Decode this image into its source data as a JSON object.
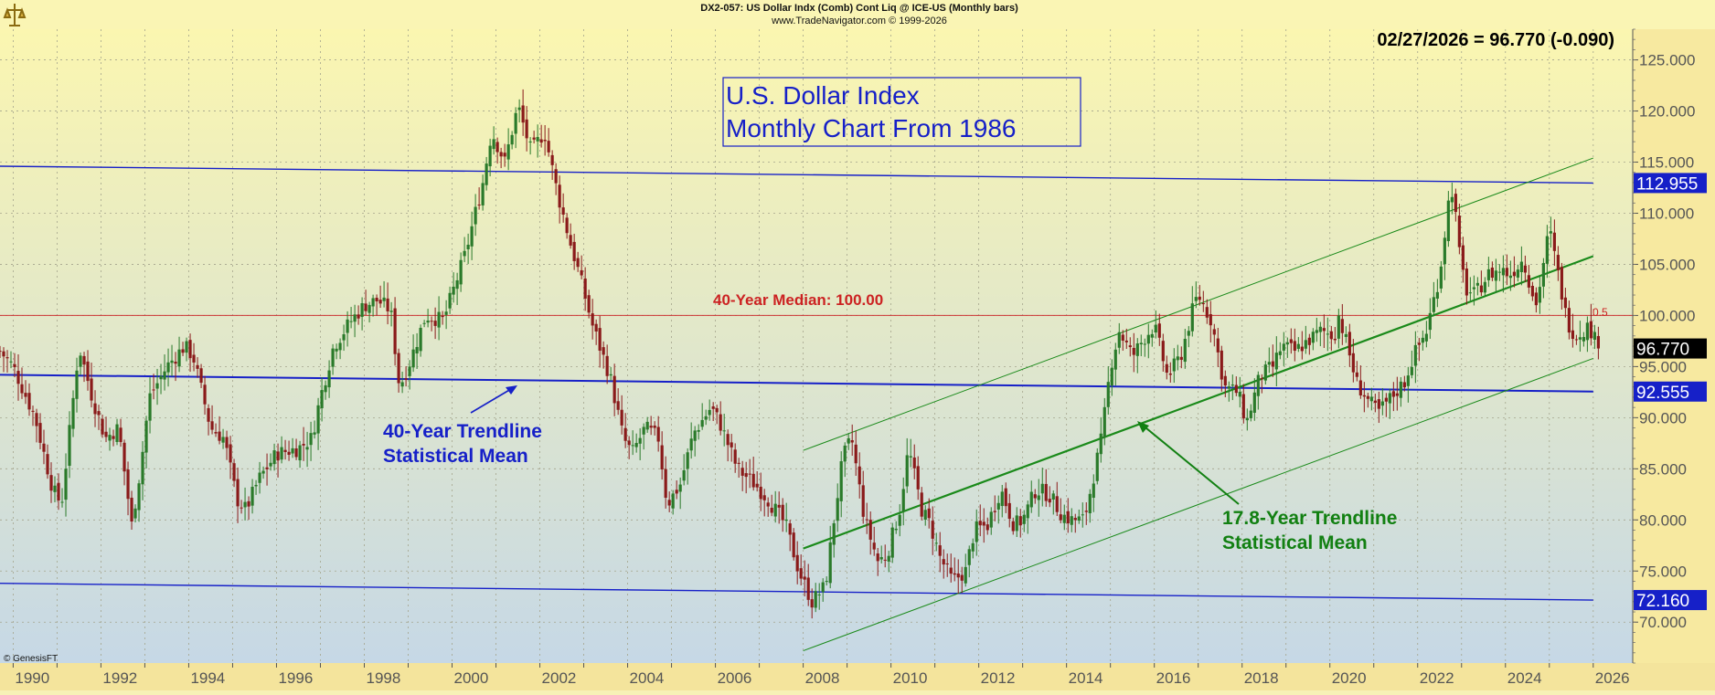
{
  "header": {
    "symbol_line": "DX2-057:  US Dollar Indx (Comb) Cont Liq @ ICE-US  (Monthly bars)",
    "source_line": "www.TradeNavigator.com © 1999-2026"
  },
  "quote": {
    "text": "02/27/2026 = 96.770 (-0.090)"
  },
  "copyright": "© GenesisFT",
  "colors": {
    "bg_top": "#fbf6b0",
    "bg_bottom": "#c6d8e6",
    "axis_bg": "#f7e9a0",
    "grid": "#a4a48c",
    "up_bar": "#2a7a2a",
    "down_bar": "#8a1a1a",
    "blue_line": "#1620c8",
    "green_line": "#1a8a1a",
    "median_line": "#cc3333"
  },
  "chart_data": {
    "type": "candlestick",
    "title": "U.S. Dollar Index Monthly Chart From 1986",
    "title_lines": [
      "U.S. Dollar Index",
      "Monthly Chart From 1986"
    ],
    "x_range": [
      1989.7,
      2026.9
    ],
    "ylim": [
      66.0,
      128.0
    ],
    "x_ticks": [
      "1990",
      "1992",
      "1994",
      "1996",
      "1998",
      "2000",
      "2002",
      "2004",
      "2006",
      "2008",
      "2010",
      "2012",
      "2014",
      "2016",
      "2018",
      "2020",
      "2022",
      "2024",
      "2026"
    ],
    "y_ticks": [
      "70.000",
      "75.000",
      "80.000",
      "85.000",
      "90.000",
      "95.000",
      "100.000",
      "105.000",
      "110.000",
      "115.000",
      "120.000",
      "125.000"
    ],
    "grid": true,
    "last_value": 96.77,
    "level_labels": [
      {
        "text": "112.955",
        "value": 112.955
      },
      {
        "text": "92.555",
        "value": 92.555
      },
      {
        "text": "72.160",
        "value": 72.16
      }
    ],
    "median_label": "0.5",
    "price_path": [
      [
        1989.7,
        96.5
      ],
      [
        1990.0,
        95.0
      ],
      [
        1990.5,
        90.0
      ],
      [
        1990.9,
        83.0
      ],
      [
        1991.1,
        81.5
      ],
      [
        1991.5,
        97.0
      ],
      [
        1991.8,
        92.0
      ],
      [
        1992.1,
        88.0
      ],
      [
        1992.4,
        89.0
      ],
      [
        1992.7,
        79.5
      ],
      [
        1992.9,
        85.0
      ],
      [
        1993.1,
        92.0
      ],
      [
        1993.5,
        95.0
      ],
      [
        1993.9,
        97.0
      ],
      [
        1994.1,
        96.0
      ],
      [
        1994.5,
        89.0
      ],
      [
        1994.8,
        88.0
      ],
      [
        1995.1,
        82.0
      ],
      [
        1995.3,
        81.0
      ],
      [
        1995.6,
        84.0
      ],
      [
        1996.0,
        86.5
      ],
      [
        1996.5,
        87.0
      ],
      [
        1996.8,
        88.0
      ],
      [
        1997.0,
        92.0
      ],
      [
        1997.3,
        97.0
      ],
      [
        1997.7,
        99.5
      ],
      [
        1998.0,
        101.0
      ],
      [
        1998.3,
        101.5
      ],
      [
        1998.6,
        100.5
      ],
      [
        1998.8,
        93.0
      ],
      [
        1999.0,
        95.0
      ],
      [
        1999.4,
        100.0
      ],
      [
        1999.8,
        99.5
      ],
      [
        2000.3,
        106.0
      ],
      [
        2000.7,
        113.0
      ],
      [
        2000.9,
        118.0
      ],
      [
        2001.2,
        115.0
      ],
      [
        2001.5,
        120.5
      ],
      [
        2001.8,
        116.0
      ],
      [
        2002.1,
        118.0
      ],
      [
        2002.4,
        112.0
      ],
      [
        2002.7,
        107.0
      ],
      [
        2002.9,
        104.0
      ],
      [
        2003.2,
        99.0
      ],
      [
        2003.6,
        94.0
      ],
      [
        2003.9,
        88.0
      ],
      [
        2004.1,
        86.5
      ],
      [
        2004.4,
        89.0
      ],
      [
        2004.7,
        88.0
      ],
      [
        2004.9,
        81.5
      ],
      [
        2005.2,
        83.5
      ],
      [
        2005.5,
        88.5
      ],
      [
        2005.9,
        91.0
      ],
      [
        2006.1,
        89.5
      ],
      [
        2006.5,
        85.0
      ],
      [
        2006.9,
        83.5
      ],
      [
        2007.2,
        82.0
      ],
      [
        2007.6,
        79.5
      ],
      [
        2007.9,
        75.0
      ],
      [
        2008.2,
        72.0
      ],
      [
        2008.5,
        73.5
      ],
      [
        2008.7,
        80.0
      ],
      [
        2008.9,
        86.0
      ],
      [
        2009.1,
        88.0
      ],
      [
        2009.4,
        80.0
      ],
      [
        2009.7,
        76.0
      ],
      [
        2009.9,
        76.5
      ],
      [
        2010.2,
        81.0
      ],
      [
        2010.4,
        87.0
      ],
      [
        2010.7,
        81.0
      ],
      [
        2010.9,
        79.5
      ],
      [
        2011.1,
        76.5
      ],
      [
        2011.4,
        74.0
      ],
      [
        2011.7,
        75.0
      ],
      [
        2011.9,
        79.0
      ],
      [
        2012.2,
        79.5
      ],
      [
        2012.5,
        83.0
      ],
      [
        2012.8,
        79.5
      ],
      [
        2013.0,
        80.0
      ],
      [
        2013.3,
        83.0
      ],
      [
        2013.6,
        82.5
      ],
      [
        2013.9,
        80.5
      ],
      [
        2014.1,
        80.0
      ],
      [
        2014.4,
        80.0
      ],
      [
        2014.6,
        84.0
      ],
      [
        2014.8,
        88.0
      ],
      [
        2015.0,
        95.0
      ],
      [
        2015.2,
        98.5
      ],
      [
        2015.5,
        96.0
      ],
      [
        2015.8,
        98.0
      ],
      [
        2016.0,
        99.0
      ],
      [
        2016.3,
        94.0
      ],
      [
        2016.6,
        96.0
      ],
      [
        2016.9,
        101.0
      ],
      [
        2017.0,
        102.0
      ],
      [
        2017.3,
        99.5
      ],
      [
        2017.6,
        93.0
      ],
      [
        2017.9,
        92.5
      ],
      [
        2018.1,
        89.5
      ],
      [
        2018.4,
        94.0
      ],
      [
        2018.7,
        95.0
      ],
      [
        2018.9,
        97.0
      ],
      [
        2019.2,
        96.5
      ],
      [
        2019.5,
        97.5
      ],
      [
        2019.8,
        98.5
      ],
      [
        2020.1,
        98.0
      ],
      [
        2020.2,
        100.0
      ],
      [
        2020.4,
        97.0
      ],
      [
        2020.6,
        93.5
      ],
      [
        2020.9,
        91.5
      ],
      [
        2021.1,
        90.5
      ],
      [
        2021.4,
        92.0
      ],
      [
        2021.7,
        93.5
      ],
      [
        2021.9,
        96.0
      ],
      [
        2022.2,
        98.5
      ],
      [
        2022.5,
        104.0
      ],
      [
        2022.7,
        111.0
      ],
      [
        2022.8,
        112.5
      ],
      [
        2022.95,
        106.0
      ],
      [
        2023.1,
        102.5
      ],
      [
        2023.3,
        102.0
      ],
      [
        2023.6,
        104.0
      ],
      [
        2023.9,
        104.5
      ],
      [
        2024.1,
        104.0
      ],
      [
        2024.4,
        105.5
      ],
      [
        2024.7,
        101.0
      ],
      [
        2024.9,
        106.0
      ],
      [
        2025.0,
        108.5
      ],
      [
        2025.2,
        104.0
      ],
      [
        2025.4,
        99.5
      ],
      [
        2025.6,
        98.0
      ],
      [
        2025.9,
        99.0
      ],
      [
        2026.1,
        97.0
      ],
      [
        2026.15,
        96.77
      ]
    ],
    "trendlines": [
      {
        "label_lines": [
          "40-Year Trendline",
          "Statistical Mean"
        ],
        "kind": "mean",
        "points": [
          [
            1989.7,
            94.2
          ],
          [
            2026.0,
            92.555
          ]
        ]
      },
      {
        "kind": "upper",
        "points": [
          [
            1989.7,
            114.6
          ],
          [
            2026.0,
            112.955
          ]
        ]
      },
      {
        "kind": "lower",
        "points": [
          [
            1989.7,
            73.8
          ],
          [
            2026.0,
            72.16
          ]
        ]
      },
      {
        "label_lines": [
          "17.8-Year Trendline",
          "Statistical Mean"
        ],
        "kind": "mean",
        "points": [
          [
            2008.0,
            77.2
          ],
          [
            2026.0,
            105.8
          ]
        ]
      },
      {
        "kind": "upper",
        "points": [
          [
            2008.0,
            86.8
          ],
          [
            2026.0,
            115.4
          ]
        ]
      },
      {
        "kind": "lower",
        "points": [
          [
            2008.0,
            67.2
          ],
          [
            2026.0,
            95.8
          ]
        ]
      }
    ],
    "annotations": [
      {
        "text": "40-Year Median: 100.00",
        "value": 100.0
      }
    ]
  }
}
